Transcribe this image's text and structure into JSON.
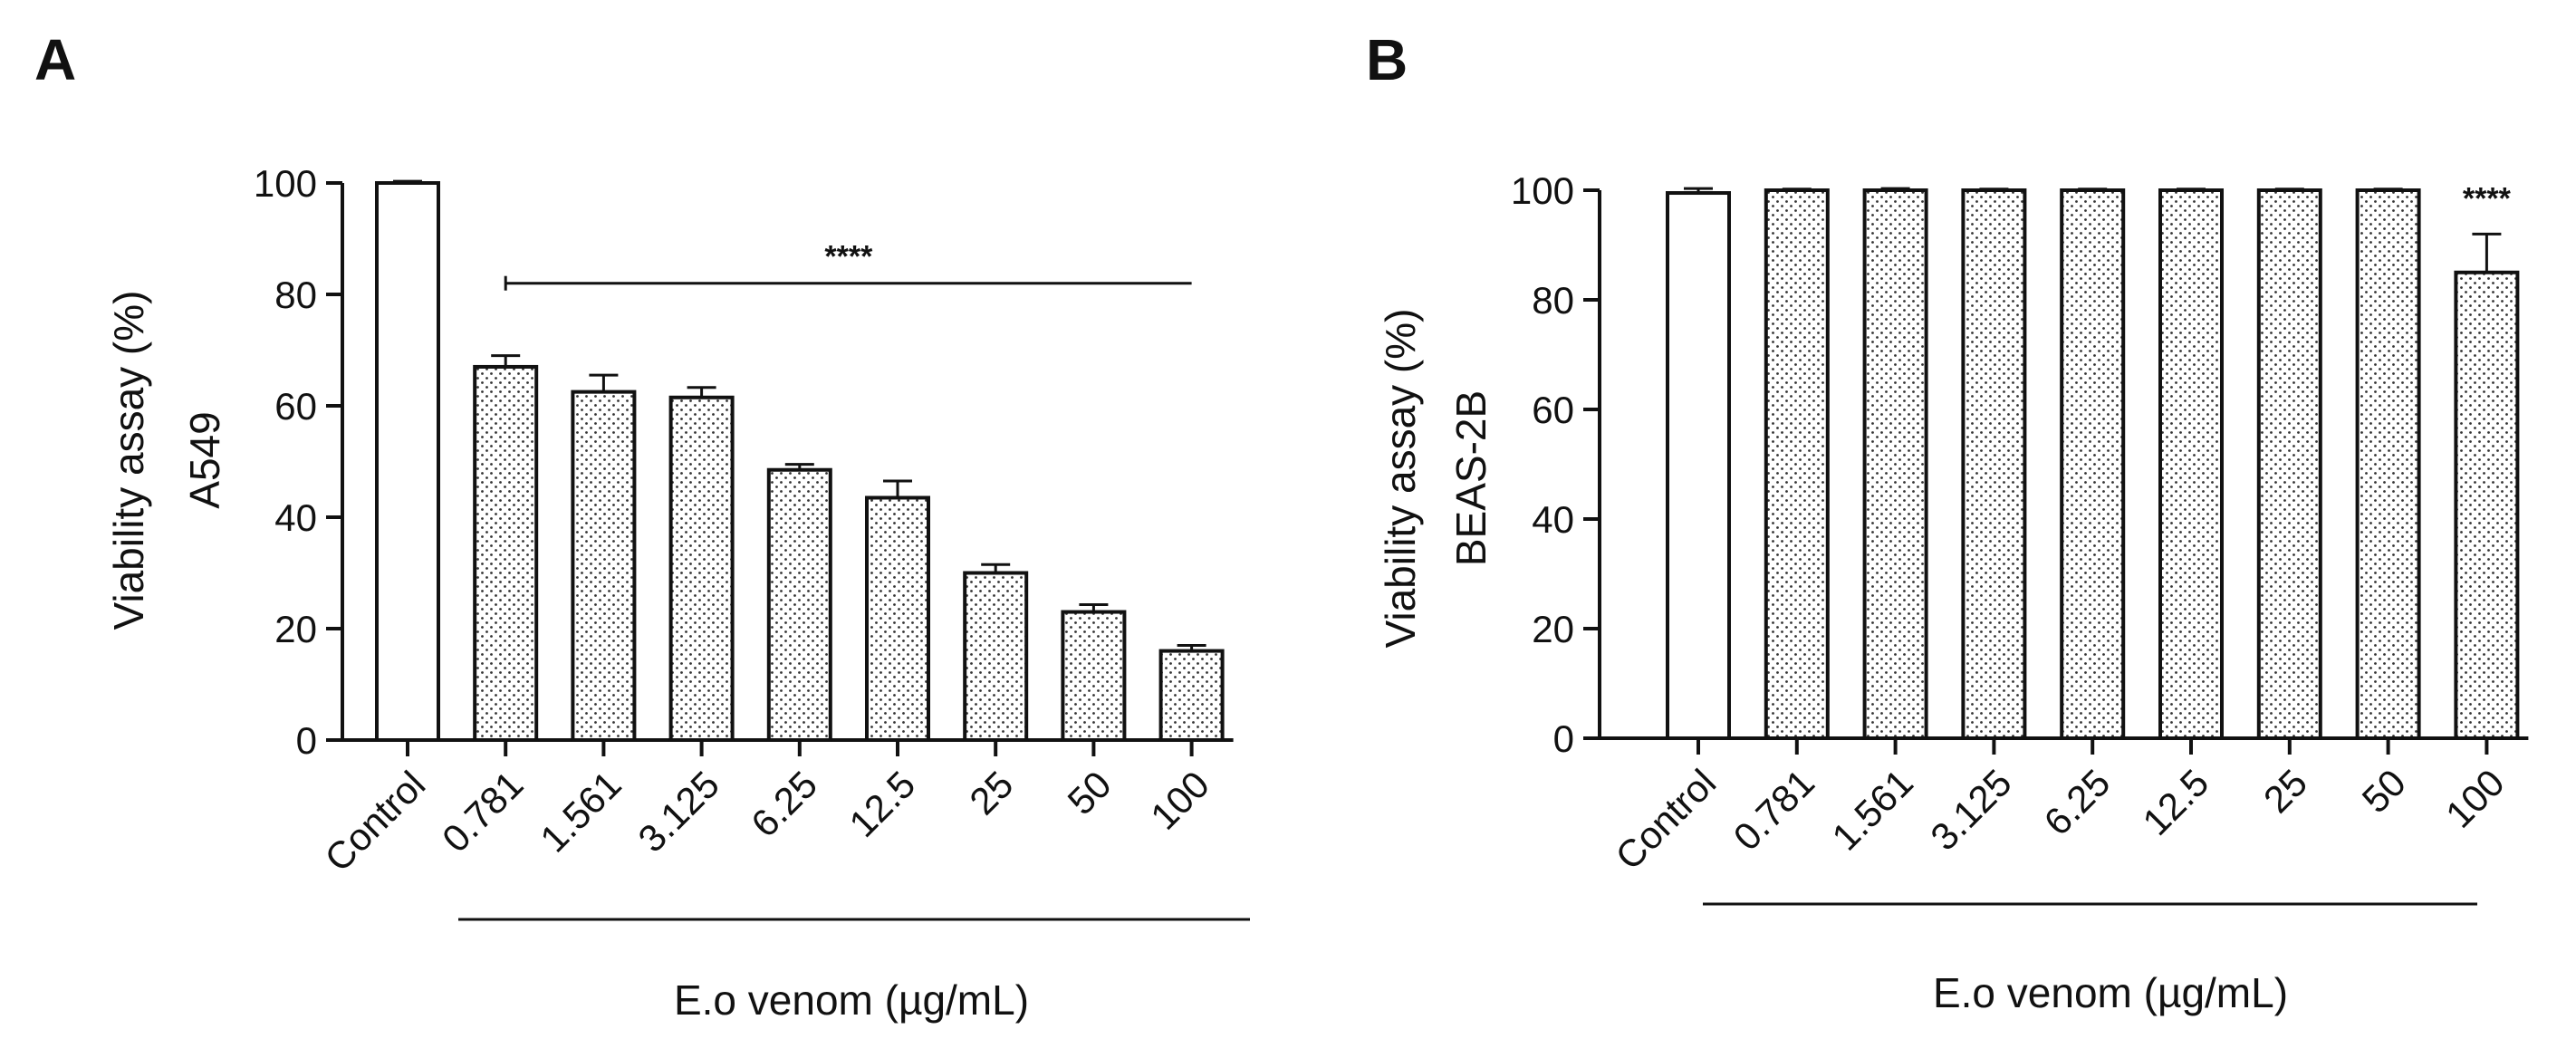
{
  "chart_data": [
    {
      "panel": "A",
      "type": "bar",
      "ylabel_line1": "Viability assay (%)",
      "ylabel_line2": "A549",
      "xlabel": "E.o venom (µg/mL)",
      "categories": [
        "Control",
        "0.781",
        "1.561",
        "3.125",
        "6.25",
        "12.5",
        "25",
        "50",
        "100"
      ],
      "values": [
        100,
        67,
        62.5,
        61.5,
        48.5,
        43.5,
        30,
        23,
        16
      ],
      "errors": [
        0.3,
        2,
        3,
        1.8,
        1,
        3,
        1.5,
        1.3,
        1
      ],
      "patterned": [
        false,
        true,
        true,
        true,
        true,
        true,
        true,
        true,
        true
      ],
      "ylim": [
        0,
        100
      ],
      "yticks": [
        0,
        20,
        40,
        60,
        80,
        100
      ],
      "significance": {
        "label": "****",
        "type": "bracket",
        "from_category": "0.781",
        "to_category": "100",
        "y": 82
      }
    },
    {
      "panel": "B",
      "type": "bar",
      "ylabel_line1": "Viability assay (%)",
      "ylabel_line2": "BEAS-2B",
      "xlabel": "E.o venom (µg/mL)",
      "categories": [
        "Control",
        "0.781",
        "1.561",
        "3.125",
        "6.25",
        "12.5",
        "25",
        "50",
        "100"
      ],
      "values": [
        99.5,
        100,
        100,
        100,
        100,
        100,
        100,
        100,
        85
      ],
      "errors": [
        0.8,
        0.2,
        0.3,
        0.2,
        0.2,
        0.2,
        0.2,
        0.2,
        7
      ],
      "patterned": [
        false,
        true,
        true,
        true,
        true,
        true,
        true,
        true,
        true
      ],
      "ylim": [
        0,
        100
      ],
      "yticks": [
        0,
        20,
        40,
        60,
        80,
        100
      ],
      "significance": {
        "label": "****",
        "type": "above-bar",
        "category": "100"
      }
    }
  ]
}
